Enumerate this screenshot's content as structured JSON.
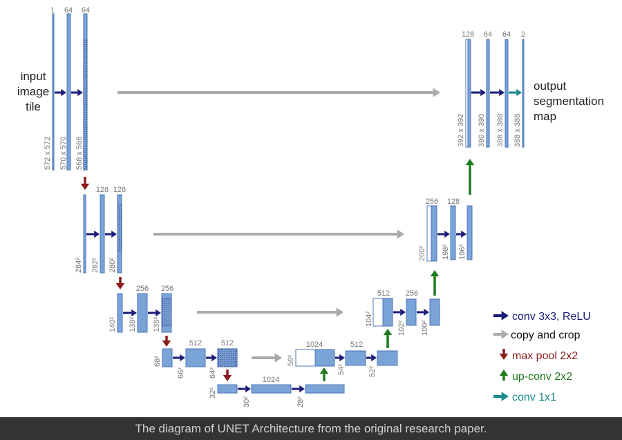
{
  "diagram": {
    "input_label": [
      "input",
      "image",
      "tile"
    ],
    "output_label": [
      "output",
      "segmentation",
      "map"
    ],
    "channel_labels": [
      "1",
      "64",
      "64",
      "128",
      "128",
      "256",
      "256",
      "512",
      "512",
      "1024",
      "512",
      "256",
      "256",
      "128",
      "128",
      "64",
      "64",
      "2"
    ],
    "size_labels": [
      "572 x 572",
      "570 x 570",
      "568 x 568",
      "284²",
      "282²",
      "280²",
      "140²",
      "138²",
      "136²",
      "68²",
      "66²",
      "64²",
      "32²",
      "30²",
      "28²",
      "56²",
      "54²",
      "52²",
      "104²",
      "102²",
      "100²",
      "200²",
      "198²",
      "196²",
      "392 x 392",
      "390 x 390",
      "388 x 388",
      "388 x 388"
    ],
    "legend": [
      {
        "label": "conv 3x3, ReLU",
        "color": "#1a1a7a",
        "icon": "arrow-right-icon"
      },
      {
        "label": "copy and crop",
        "color": "#aaaaaa",
        "icon": "arrow-right-icon"
      },
      {
        "label": "max pool 2x2",
        "color": "#8b1a1a",
        "icon": "arrow-down-icon"
      },
      {
        "label": "up-conv 2x2",
        "color": "#1f7a1f",
        "icon": "arrow-up-icon"
      },
      {
        "label": "conv 1x1",
        "color": "#1a8a8a",
        "icon": "arrow-right-icon"
      }
    ]
  },
  "caption": "The diagram of UNET Architecture from the original research paper."
}
